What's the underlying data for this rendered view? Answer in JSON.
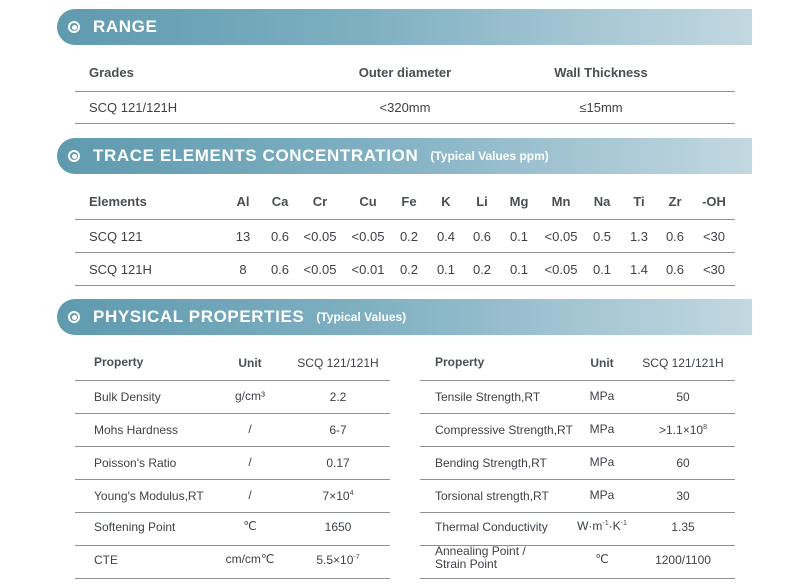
{
  "range": {
    "title": "RANGE",
    "headers": [
      "Grades",
      "Outer diameter",
      "Wall Thickness"
    ],
    "row": [
      "SCQ 121/121H",
      "<320mm",
      "≤15mm"
    ]
  },
  "trace": {
    "title": "TRACE ELEMENTS CONCENTRATION",
    "subtitle": "(Typical Values ppm)",
    "headers": [
      "Elements",
      "Al",
      "Ca",
      "Cr",
      "Cu",
      "Fe",
      "K",
      "Li",
      "Mg",
      "Mn",
      "Na",
      "Ti",
      "Zr",
      "-OH"
    ],
    "rows": [
      [
        "SCQ 121",
        "13",
        "0.6",
        "<0.05",
        "<0.05",
        "0.2",
        "0.4",
        "0.6",
        "0.1",
        "<0.05",
        "0.5",
        "1.3",
        "0.6",
        "<30"
      ],
      [
        "SCQ 121H",
        "8",
        "0.6",
        "<0.05",
        "<0.01",
        "0.2",
        "0.1",
        "0.2",
        "0.1",
        "<0.05",
        "0.1",
        "1.4",
        "0.6",
        "<30"
      ]
    ]
  },
  "physical": {
    "title": "PHYSICAL PROPERTIES",
    "subtitle": "(Typical Values)",
    "headers": [
      "Property",
      "Unit",
      "SCQ 121/121H"
    ],
    "left_rows": [
      {
        "property": "Bulk Density",
        "unit": "g/cm³",
        "value": "2.2"
      },
      {
        "property": "Mohs Hardness",
        "unit": "/",
        "value": "6-7"
      },
      {
        "property": "Poisson's Ratio",
        "unit": "/",
        "value": "0.17"
      },
      {
        "property": "Young's Modulus,RT",
        "unit": "/",
        "value": "7×10",
        "exp": "4"
      },
      {
        "property": "Softening Point",
        "unit": "℃",
        "value": "1650"
      },
      {
        "property": "CTE",
        "unit": "cm/cm℃",
        "value": "5.5×10",
        "exp": "-7"
      }
    ],
    "right_rows": [
      {
        "property": "Tensile Strength,RT",
        "unit": "MPa",
        "value": "50"
      },
      {
        "property": "Compressive Strength,RT",
        "unit": "MPa",
        "value": ">1.1×10",
        "exp": "8"
      },
      {
        "property": "Bending Strength,RT",
        "unit": "MPa",
        "value": "60"
      },
      {
        "property": "Torsional strength,RT",
        "unit": "MPa",
        "value": "30"
      },
      {
        "property": "Thermal Conductivity",
        "unit": "W·m",
        "unit_exp1": "-1",
        "unit_mid": "·K",
        "unit_exp2": "-1",
        "value": "1.35"
      },
      {
        "property": "Annealing Point /",
        "property2": "Strain Point",
        "unit": "℃",
        "value": "1200/1100"
      }
    ]
  },
  "colors": {
    "banner_start": "#5f9aae",
    "banner_end": "#c2d8e0",
    "text": "#3d4248",
    "rule": "#8d9196"
  },
  "icons": {
    "section_bullet": "target-bullet-icon"
  }
}
